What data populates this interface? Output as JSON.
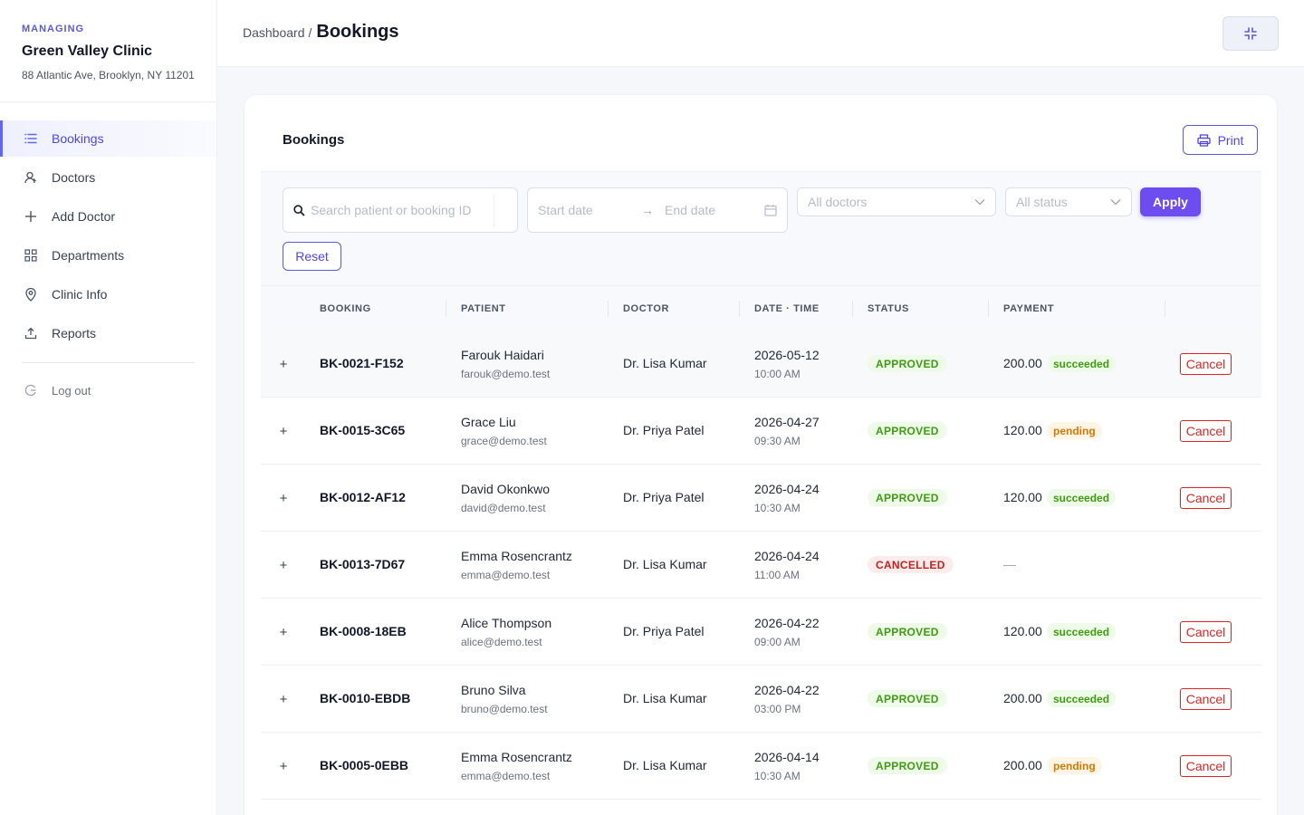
{
  "sidebar": {
    "managing_label": "MANAGING",
    "clinic_name": "Green Valley Clinic",
    "clinic_address": "88 Atlantic Ave, Brooklyn, NY 11201",
    "items": [
      {
        "label": "Bookings",
        "icon": "list-icon",
        "active": true
      },
      {
        "label": "Doctors",
        "icon": "user-icon"
      },
      {
        "label": "Add Doctor",
        "icon": "plus-icon"
      },
      {
        "label": "Departments",
        "icon": "grid-icon"
      },
      {
        "label": "Clinic Info",
        "icon": "location-pin-icon"
      },
      {
        "label": "Reports",
        "icon": "export-icon"
      }
    ],
    "logout_label": "Log out"
  },
  "header": {
    "breadcrumb_parent": "Dashboard",
    "breadcrumb_sep": "/",
    "title": "Bookings"
  },
  "card": {
    "title": "Bookings",
    "print_label": "Print"
  },
  "filters": {
    "search_placeholder": "Search patient or booking ID",
    "start_placeholder": "Start date",
    "end_placeholder": "End date",
    "doctor_select": "All doctors",
    "status_select": "All status",
    "apply_label": "Apply",
    "reset_label": "Reset"
  },
  "table": {
    "columns": [
      "BOOKING",
      "PATIENT",
      "DOCTOR",
      "DATE · TIME",
      "STATUS",
      "PAYMENT"
    ],
    "cancel_label": "Cancel",
    "no_payment": "—",
    "rows": [
      {
        "id": "BK-0021-F152",
        "patient": "Farouk Haidari",
        "email": "farouk@demo.test",
        "doctor": "Dr. Lisa Kumar",
        "date": "2026-05-12",
        "time": "10:00 AM",
        "status": "APPROVED",
        "amount": "200.00",
        "payment": "succeeded"
      },
      {
        "id": "BK-0015-3C65",
        "patient": "Grace Liu",
        "email": "grace@demo.test",
        "doctor": "Dr. Priya Patel",
        "date": "2026-04-27",
        "time": "09:30 AM",
        "status": "APPROVED",
        "amount": "120.00",
        "payment": "pending"
      },
      {
        "id": "BK-0012-AF12",
        "patient": "David Okonkwo",
        "email": "david@demo.test",
        "doctor": "Dr. Priya Patel",
        "date": "2026-04-24",
        "time": "10:30 AM",
        "status": "APPROVED",
        "amount": "120.00",
        "payment": "succeeded"
      },
      {
        "id": "BK-0013-7D67",
        "patient": "Emma Rosencrantz",
        "email": "emma@demo.test",
        "doctor": "Dr. Lisa Kumar",
        "date": "2026-04-24",
        "time": "11:00 AM",
        "status": "CANCELLED",
        "amount": "",
        "payment": ""
      },
      {
        "id": "BK-0008-18EB",
        "patient": "Alice Thompson",
        "email": "alice@demo.test",
        "doctor": "Dr. Priya Patel",
        "date": "2026-04-22",
        "time": "09:00 AM",
        "status": "APPROVED",
        "amount": "120.00",
        "payment": "succeeded"
      },
      {
        "id": "BK-0010-EBDB",
        "patient": "Bruno Silva",
        "email": "bruno@demo.test",
        "doctor": "Dr. Lisa Kumar",
        "date": "2026-04-22",
        "time": "03:00 PM",
        "status": "APPROVED",
        "amount": "200.00",
        "payment": "succeeded"
      },
      {
        "id": "BK-0005-0EBB",
        "patient": "Emma Rosencrantz",
        "email": "emma@demo.test",
        "doctor": "Dr. Lisa Kumar",
        "date": "2026-04-14",
        "time": "10:30 AM",
        "status": "APPROVED",
        "amount": "200.00",
        "payment": "pending"
      }
    ]
  },
  "colors": {
    "accent": "#6366f1",
    "apply": "#6d4cf0",
    "approved": "#3f9b12",
    "cancelled": "#c81e1e",
    "pending": "#d97706",
    "cancel_button": "#dc2626"
  }
}
